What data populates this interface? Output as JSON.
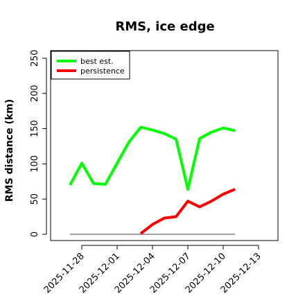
{
  "chart_data": {
    "type": "line",
    "title": "RMS, ice edge",
    "xlabel": "",
    "ylabel": "RMS distance (km)",
    "ylim": [
      0,
      250
    ],
    "yticks": [
      0,
      50,
      100,
      150,
      200,
      250
    ],
    "xticks": [
      "2025-11-28",
      "2025-12-01",
      "2025-12-04",
      "2025-12-07",
      "2025-12-10",
      "2025-12-13"
    ],
    "x": [
      "2025-11-27",
      "2025-11-28",
      "2025-11-29",
      "2025-11-30",
      "2025-12-01",
      "2025-12-02",
      "2025-12-03",
      "2025-12-04",
      "2025-12-05",
      "2025-12-06",
      "2025-12-07",
      "2025-12-08",
      "2025-12-09",
      "2025-12-10",
      "2025-12-11"
    ],
    "series": [
      {
        "name": "best est.",
        "color": "#00ff00",
        "values": [
          70,
          101,
          72,
          71,
          101,
          131,
          152,
          148,
          143,
          135,
          64,
          136,
          145,
          151,
          147
        ]
      },
      {
        "name": "persistence",
        "color": "#ff0000",
        "values": [
          null,
          null,
          null,
          null,
          null,
          null,
          1,
          14,
          23,
          25,
          47,
          39,
          47,
          57,
          64
        ]
      }
    ],
    "reference_line": {
      "y": 0,
      "color": "#7f7f7f"
    },
    "legend": {
      "position": "top-left"
    },
    "grid": false
  }
}
